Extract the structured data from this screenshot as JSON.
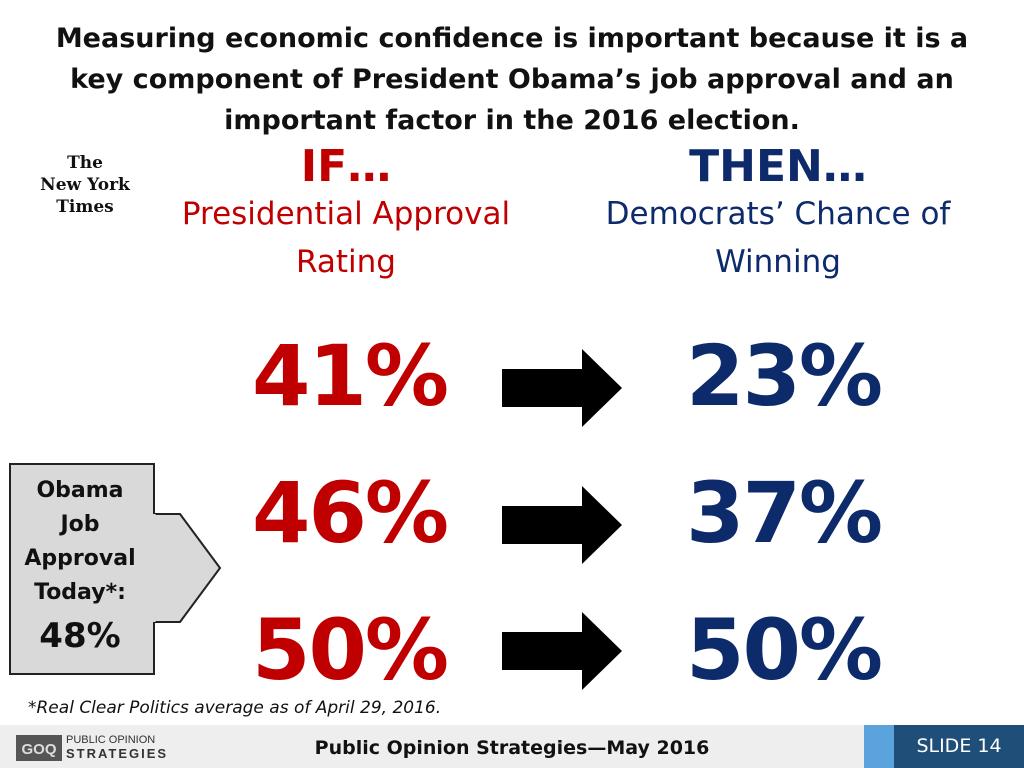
{
  "headline": "Measuring economic confidence is important because it is a key component of President Obama’s job approval and an important factor in the 2016 election.",
  "nyt_logo": [
    "The",
    "New York",
    "Times"
  ],
  "left_column": {
    "heading": "IF…",
    "subheading_line1": "Presidential Approval",
    "subheading_line2": "Rating",
    "values": [
      "41%",
      "46%",
      "50%"
    ]
  },
  "right_column": {
    "heading": "THEN…",
    "subheading_line1": "Democrats’ Chance of",
    "subheading_line2": "Winning",
    "values": [
      "23%",
      "37%",
      "50%"
    ]
  },
  "callout": {
    "lines": [
      "Obama",
      "Job",
      "Approval",
      "Today*:"
    ],
    "value": "48%"
  },
  "footnote": "*Real Clear Politics average as of April 29, 2016.",
  "footer": {
    "logo_line1": "PUBLIC OPINION",
    "logo_line2": "STRATEGIES",
    "center_text": "Public Opinion Strategies—May 2016",
    "slide_label": "SLIDE 14"
  },
  "colors": {
    "approval_red": "#c00000",
    "chance_navy": "#0d2a6b",
    "slide_box_blue": "#1f4e79",
    "slide_accent_blue": "#5ba3dd"
  }
}
